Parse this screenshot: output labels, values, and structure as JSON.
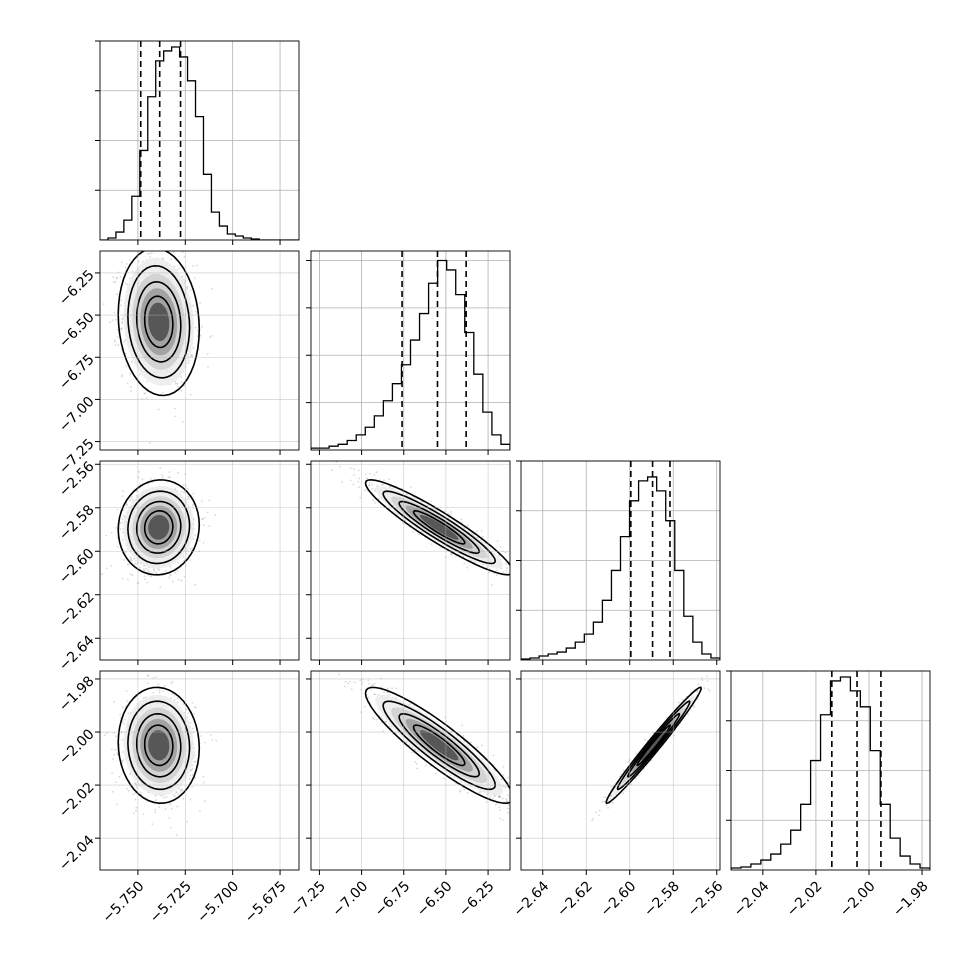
{
  "figure": {
    "background": "#ffffff"
  },
  "chart_data": {
    "type": "corner",
    "grid": true,
    "colors": {
      "line": "#000000",
      "grid": "#b0b0b0",
      "points": "#808080"
    },
    "params": [
      {
        "range": [
          -5.77,
          -5.665
        ],
        "ticks": [
          -5.75,
          -5.725,
          -5.7,
          -5.675
        ],
        "tick_labels": [
          "−5.750",
          "−5.725",
          "−5.700",
          "−5.675"
        ],
        "quantiles": [
          -5.7485,
          -5.7385,
          -5.7275
        ],
        "center": -5.739,
        "sigma": 0.0093
      },
      {
        "range": [
          -7.3,
          -6.12
        ],
        "ticks": [
          -7.25,
          -7.0,
          -6.75,
          -6.5,
          -6.25
        ],
        "tick_labels": [
          "−7.25",
          "−7.00",
          "−6.75",
          "−6.50",
          "−6.25"
        ],
        "quantiles": [
          -6.76,
          -6.55,
          -6.38
        ],
        "center": -6.54,
        "sigma": 0.19
      },
      {
        "range": [
          -2.65,
          -2.5585
        ],
        "ticks": [
          -2.64,
          -2.62,
          -2.6,
          -2.58,
          -2.56
        ],
        "tick_labels": [
          "−2.64",
          "−2.62",
          "−2.60",
          "−2.58",
          "−2.56"
        ],
        "quantiles": [
          -2.5995,
          -2.5895,
          -2.5815
        ],
        "center": -2.589,
        "sigma": 0.0095
      },
      {
        "range": [
          -2.052,
          -1.977
        ],
        "ticks": [
          -2.04,
          -2.02,
          -2.0,
          -1.98
        ],
        "tick_labels": [
          "−2.04",
          "−2.02",
          "−2.00",
          "−1.98"
        ],
        "quantiles": [
          -2.014,
          -2.0045,
          -1.9955
        ],
        "center": -2.005,
        "sigma": 0.0095
      }
    ],
    "histograms": [
      {
        "param": 0,
        "ymax": 1.0,
        "counts": [
          0.0,
          0.01,
          0.04,
          0.1,
          0.22,
          0.45,
          0.72,
          0.9,
          0.95,
          0.97,
          0.92,
          0.8,
          0.62,
          0.33,
          0.14,
          0.07,
          0.03,
          0.02,
          0.01,
          0.005,
          0.0,
          0.0,
          0.0,
          0.0,
          0.0
        ]
      },
      {
        "param": 1,
        "ymax": 1.05,
        "counts": [
          0.01,
          0.01,
          0.02,
          0.03,
          0.05,
          0.08,
          0.12,
          0.18,
          0.26,
          0.35,
          0.45,
          0.58,
          0.72,
          0.88,
          1.0,
          0.95,
          0.82,
          0.62,
          0.4,
          0.2,
          0.08,
          0.03
        ]
      },
      {
        "param": 2,
        "ymax": 1.0,
        "counts": [
          0.005,
          0.01,
          0.02,
          0.03,
          0.04,
          0.06,
          0.09,
          0.13,
          0.19,
          0.3,
          0.45,
          0.62,
          0.8,
          0.9,
          0.92,
          0.85,
          0.7,
          0.45,
          0.22,
          0.09,
          0.03,
          0.01
        ]
      },
      {
        "param": 3,
        "ymax": 1.0,
        "counts": [
          0.01,
          0.015,
          0.03,
          0.05,
          0.08,
          0.13,
          0.2,
          0.33,
          0.55,
          0.78,
          0.95,
          0.97,
          0.9,
          0.82,
          0.6,
          0.33,
          0.16,
          0.07,
          0.03,
          0.01
        ]
      }
    ],
    "correlations": [
      {
        "row": 1,
        "col": 0,
        "rho": -0.1
      },
      {
        "row": 2,
        "col": 0,
        "rho": 0.05
      },
      {
        "row": 2,
        "col": 1,
        "rho": -0.93
      },
      {
        "row": 3,
        "col": 0,
        "rho": -0.05
      },
      {
        "row": 3,
        "col": 1,
        "rho": -0.9
      },
      {
        "row": 3,
        "col": 2,
        "rho": 0.985
      }
    ]
  }
}
